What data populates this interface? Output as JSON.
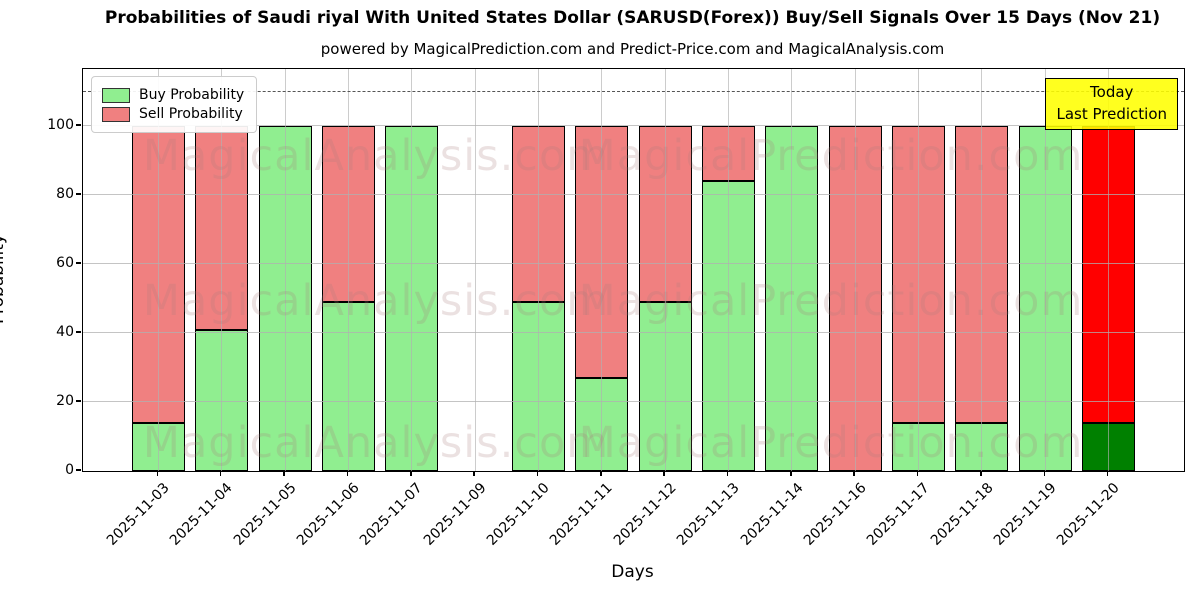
{
  "title": "Probabilities of Saudi riyal With United States Dollar (SARUSD(Forex)) Buy/Sell Signals Over 15 Days (Nov 21)",
  "subtitle": "powered by MagicalPrediction.com and Predict-Price.com and MagicalAnalysis.com",
  "chart_data": {
    "type": "bar",
    "stacked": true,
    "title": "Probabilities of Saudi riyal With United States Dollar (SARUSD(Forex)) Buy/Sell Signals Over 15 Days (Nov 21)",
    "xlabel": "Days",
    "ylabel": "Probability",
    "categories": [
      "2025-11-03",
      "2025-11-04",
      "2025-11-05",
      "2025-11-06",
      "2025-11-07",
      "2025-11-09",
      "2025-11-10",
      "2025-11-11",
      "2025-11-12",
      "2025-11-13",
      "2025-11-14",
      "2025-11-16",
      "2025-11-17",
      "2025-11-18",
      "2025-11-19",
      "2025-11-20"
    ],
    "series": [
      {
        "name": "Buy Probability",
        "color": "#90ee90",
        "values": [
          14,
          41,
          100,
          49,
          100,
          null,
          49,
          27,
          49,
          84,
          100,
          0,
          14,
          14,
          100,
          14
        ]
      },
      {
        "name": "Sell Probability",
        "color": "#f08080",
        "values": [
          86,
          59,
          0,
          51,
          0,
          null,
          51,
          73,
          51,
          16,
          0,
          100,
          86,
          86,
          0,
          86
        ]
      }
    ],
    "today_index": 15,
    "today_buy_color": "#008000",
    "today_sell_color": "#ff0000",
    "yticks": [
      0,
      20,
      40,
      60,
      80,
      100
    ],
    "ylim": [
      0,
      116.5
    ],
    "dashed_line_y": 110,
    "grid": true,
    "legend_position": "upper-left"
  },
  "legend": {
    "buy_label": "Buy Probability",
    "sell_label": "Sell Probability"
  },
  "annotation": {
    "line1": "Today",
    "line2": "Last Prediction",
    "bg_color": "#ffff00"
  },
  "watermarks": {
    "left_text": "MagicalAnalysis.com",
    "right_text": "MagicalPrediction.com"
  },
  "colors": {
    "buy": "#90ee90",
    "sell": "#f08080",
    "today_buy": "#008000",
    "today_sell": "#ff0000",
    "grid": "#b0b0b0",
    "annotation_bg": "#ffff00"
  }
}
